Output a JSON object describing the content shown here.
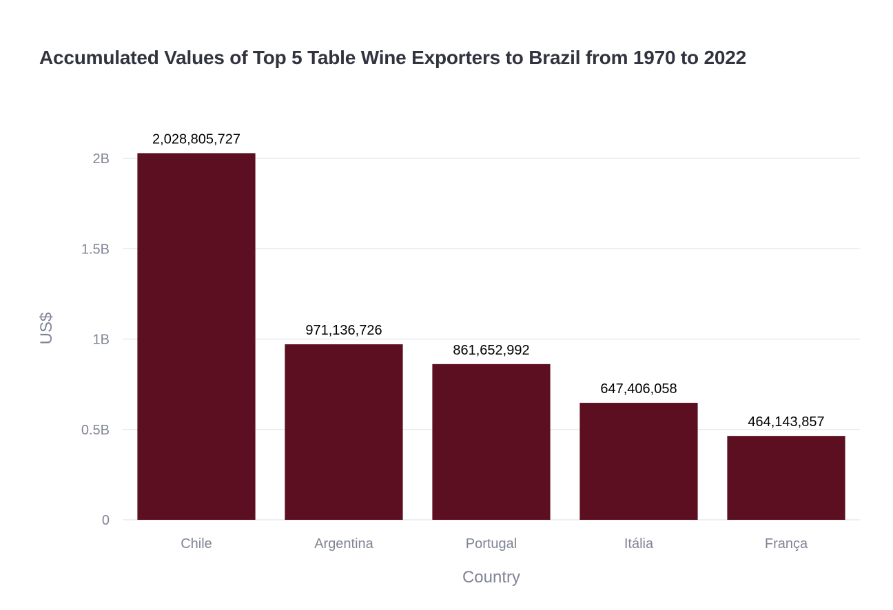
{
  "chart_data": {
    "type": "bar",
    "title": "Accumulated Values of Top 5 Table Wine Exporters to Brazil from 1970 to 2022",
    "xlabel": "Country",
    "ylabel": "US$",
    "categories": [
      "Chile",
      "Argentina",
      "Portugal",
      "Itália",
      "França"
    ],
    "values": [
      2028805727,
      971136726,
      861652992,
      647406058,
      464143857
    ],
    "data_labels": [
      "2,028,805,727",
      "971,136,726",
      "861,652,992",
      "647,406,058",
      "464,143,857"
    ],
    "ylim": [
      0,
      2000000000
    ],
    "y_ticks": [
      0,
      500000000,
      1000000000,
      1500000000,
      2000000000
    ],
    "y_tick_labels": [
      "0",
      "0.5B",
      "1B",
      "1.5B",
      "2B"
    ],
    "grid": true,
    "legend": "none",
    "colors": {
      "bar": "#5c0f20",
      "grid": "#e6e9ef",
      "axis_text": "#808495",
      "title": "#31333f"
    }
  }
}
